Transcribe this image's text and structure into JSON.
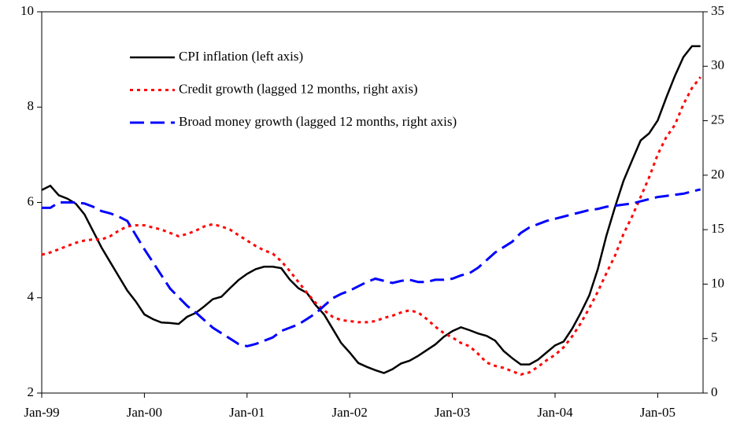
{
  "chart_data": {
    "type": "line",
    "categories": [
      "Jan-99",
      null,
      null,
      null,
      null,
      null,
      null,
      null,
      null,
      null,
      null,
      null,
      "Jan-00",
      null,
      null,
      null,
      null,
      null,
      null,
      null,
      null,
      null,
      null,
      null,
      "Jan-01",
      null,
      null,
      null,
      null,
      null,
      null,
      null,
      null,
      null,
      null,
      null,
      "Jan-02",
      null,
      null,
      null,
      null,
      null,
      null,
      null,
      null,
      null,
      null,
      null,
      "Jan-03",
      null,
      null,
      null,
      null,
      null,
      null,
      null,
      null,
      null,
      null,
      null,
      "Jan-04",
      null,
      null,
      null,
      null,
      null,
      null,
      null,
      null,
      null,
      null,
      null,
      "Jan-05",
      null,
      null,
      null,
      null,
      null
    ],
    "ylim": [
      2,
      10
    ],
    "yticks": [
      2,
      4,
      6,
      8,
      10
    ],
    "y2lim": [
      0,
      35
    ],
    "y2ticks": [
      0,
      5,
      10,
      15,
      20,
      25,
      30,
      35
    ],
    "legend": "upper left",
    "series": [
      {
        "name": "CPI inflation (left axis)",
        "color": "#000000",
        "style": "solid",
        "values": [
          6.26,
          6.35,
          6.15,
          6.08,
          5.97,
          5.75,
          5.4,
          5.05,
          4.75,
          4.45,
          4.15,
          3.92,
          3.65,
          3.55,
          3.48,
          3.47,
          3.45,
          3.6,
          3.68,
          3.82,
          3.97,
          4.02,
          4.2,
          4.37,
          4.5,
          4.6,
          4.65,
          4.65,
          4.62,
          4.38,
          4.2,
          4.1,
          3.85,
          3.65,
          3.35,
          3.05,
          2.85,
          2.63,
          2.55,
          2.48,
          2.42,
          2.5,
          2.62,
          2.68,
          2.78,
          2.9,
          3.02,
          3.18,
          3.3,
          3.38,
          3.32,
          3.25,
          3.2,
          3.1,
          2.88,
          2.73,
          2.6,
          2.6,
          2.7,
          2.85,
          3.0,
          3.08,
          3.35,
          3.68,
          4.05,
          4.6,
          5.3,
          5.9,
          6.45,
          6.88,
          7.3,
          7.45,
          7.72,
          8.2,
          8.65,
          9.05,
          9.28,
          9.28
        ]
      },
      {
        "name": "Credit growth (lagged 12 months, right axis)",
        "color": "#ff0000",
        "style": "dotted",
        "axis": "y2",
        "values": [
          12.7,
          12.9,
          13.2,
          13.5,
          13.8,
          14.0,
          14.1,
          14.1,
          14.4,
          14.9,
          15.3,
          15.4,
          15.4,
          15.2,
          15.0,
          14.7,
          14.4,
          14.6,
          14.9,
          15.3,
          15.5,
          15.3,
          15.0,
          14.5,
          14.0,
          13.5,
          13.1,
          12.8,
          12.1,
          11.2,
          10.2,
          9.2,
          8.3,
          7.6,
          7.0,
          6.7,
          6.6,
          6.5,
          6.5,
          6.6,
          6.9,
          7.1,
          7.4,
          7.6,
          7.4,
          6.8,
          6.1,
          5.5,
          5.1,
          4.6,
          4.3,
          3.6,
          2.8,
          2.5,
          2.3,
          2.0,
          1.7,
          1.9,
          2.4,
          3.0,
          3.5,
          4.2,
          5.2,
          6.4,
          7.8,
          9.3,
          11.0,
          12.6,
          14.6,
          16.2,
          18.0,
          19.8,
          21.9,
          23.5,
          24.6,
          26.5,
          28.0,
          29.0
        ]
      },
      {
        "name": "Broad money growth (lagged 12 months, right axis)",
        "color": "#0000ff",
        "style": "dashed",
        "axis": "y2",
        "values": [
          17.0,
          17.0,
          17.5,
          17.5,
          17.5,
          17.4,
          17.1,
          16.7,
          16.5,
          16.2,
          15.8,
          14.5,
          13.2,
          12.0,
          10.8,
          9.6,
          8.8,
          8.0,
          7.4,
          6.7,
          6.0,
          5.5,
          5.0,
          4.5,
          4.3,
          4.5,
          4.8,
          5.1,
          5.7,
          6.0,
          6.3,
          6.8,
          7.3,
          8.0,
          8.7,
          9.1,
          9.4,
          9.8,
          10.2,
          10.5,
          10.3,
          10.1,
          10.3,
          10.4,
          10.2,
          10.2,
          10.4,
          10.4,
          10.5,
          10.8,
          11.0,
          11.5,
          12.2,
          12.9,
          13.4,
          13.9,
          14.7,
          15.2,
          15.5,
          15.8,
          16.0,
          16.2,
          16.4,
          16.6,
          16.8,
          16.9,
          17.1,
          17.2,
          17.3,
          17.4,
          17.6,
          17.8,
          18.0,
          18.1,
          18.2,
          18.3,
          18.5,
          18.7
        ]
      }
    ]
  }
}
